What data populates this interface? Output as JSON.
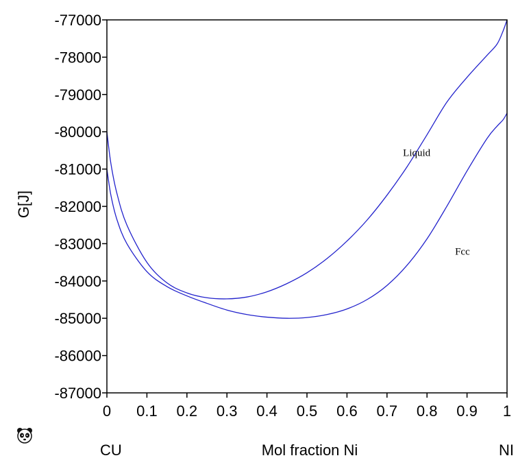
{
  "chart_data": {
    "type": "line",
    "title": "",
    "ylabel": "G[J]",
    "xlabel": "Mol fraction Ni",
    "x_endpoint_labels": [
      "CU",
      "NI"
    ],
    "xlim": [
      0,
      1
    ],
    "ylim": [
      -87000,
      -77000
    ],
    "x_ticks": [
      0,
      0.1,
      0.2,
      0.3,
      0.4,
      0.5,
      0.6,
      0.7,
      0.8,
      0.9,
      1
    ],
    "x_tick_labels": [
      "0",
      "0.1",
      "0.2",
      "0.3",
      "0.4",
      "0.5",
      "0.6",
      "0.7",
      "0.8",
      "0.9",
      "1"
    ],
    "y_ticks": [
      -77000,
      -78000,
      -79000,
      -80000,
      -81000,
      -82000,
      -83000,
      -84000,
      -85000,
      -86000,
      -87000
    ],
    "y_tick_labels": [
      "-77000",
      "-78000",
      "-79000",
      "-80000",
      "-81000",
      "-82000",
      "-83000",
      "-84000",
      "-85000",
      "-86000",
      "-87000"
    ],
    "grid": false,
    "series": [
      {
        "name": "Liquid",
        "color": "#2222cc",
        "x": [
          0,
          0.01,
          0.025,
          0.05,
          0.1,
          0.15,
          0.2,
          0.25,
          0.3,
          0.35,
          0.4,
          0.45,
          0.5,
          0.55,
          0.6,
          0.65,
          0.7,
          0.75,
          0.8,
          0.85,
          0.9,
          0.95,
          0.975,
          0.99,
          1
        ],
        "values": [
          -80000,
          -80850,
          -81650,
          -82500,
          -83500,
          -84050,
          -84320,
          -84450,
          -84480,
          -84430,
          -84290,
          -84070,
          -83780,
          -83400,
          -82930,
          -82370,
          -81700,
          -80940,
          -80080,
          -79200,
          -78540,
          -77950,
          -77650,
          -77300,
          -77000
        ]
      },
      {
        "name": "Fcc",
        "color": "#2222cc",
        "x": [
          0,
          0.01,
          0.025,
          0.05,
          0.1,
          0.15,
          0.2,
          0.25,
          0.3,
          0.35,
          0.4,
          0.45,
          0.5,
          0.55,
          0.6,
          0.65,
          0.7,
          0.75,
          0.8,
          0.85,
          0.9,
          0.95,
          0.975,
          0.99,
          1
        ],
        "values": [
          -81000,
          -81700,
          -82350,
          -83000,
          -83750,
          -84150,
          -84400,
          -84600,
          -84780,
          -84900,
          -84970,
          -85000,
          -84980,
          -84900,
          -84750,
          -84500,
          -84120,
          -83580,
          -82870,
          -81990,
          -81050,
          -80180,
          -79850,
          -79680,
          -79500
        ]
      }
    ],
    "annotations": [
      {
        "text": "Liquid",
        "series": "Liquid",
        "x": 0.74,
        "y": -80650
      },
      {
        "text": "Fcc",
        "series": "Fcc",
        "x": 0.87,
        "y": -83300
      }
    ]
  },
  "icons": {
    "logo": "panda-logo-icon"
  }
}
